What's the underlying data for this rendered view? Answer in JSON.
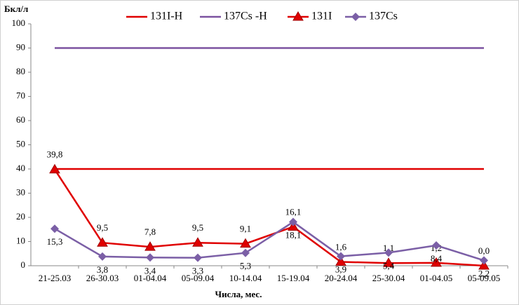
{
  "chart_data": {
    "type": "line",
    "y_axis_title": "Бкл/л",
    "x_axis_title": "Числа, мес.",
    "categories": [
      "21-25.03",
      "26-30.03",
      "01-04.04",
      "05-09.04",
      "10-14.04",
      "15-19.04",
      "20-24.04",
      "25-30.04",
      "01-04.05",
      "05-09.05"
    ],
    "ylim": [
      0,
      100
    ],
    "yticks": [
      0,
      10,
      20,
      30,
      40,
      50,
      60,
      70,
      80,
      90,
      100
    ],
    "grid": false,
    "legend": "top",
    "series": [
      {
        "name": "131I-Н",
        "color": "#e00000",
        "values": [
          40,
          40,
          40,
          40,
          40,
          40,
          40,
          40,
          40,
          40
        ]
      },
      {
        "name": "137Cs -Н",
        "color": "#7b52a0",
        "values": [
          90,
          90,
          90,
          90,
          90,
          90,
          90,
          90,
          90,
          90
        ]
      },
      {
        "name": "131I",
        "color": "#e00000",
        "marker": "triangle",
        "label_position": "above",
        "values": [
          39.8,
          9.5,
          7.8,
          9.5,
          9.1,
          16.1,
          1.6,
          1.1,
          1.2,
          0.0
        ],
        "value_labels": [
          "39,8",
          "9,5",
          "7,8",
          "9,5",
          "9,1",
          "16,1",
          "1,6",
          "1,1",
          "1,2",
          "0,0"
        ]
      },
      {
        "name": "137Cs",
        "color": "#7b5fa6",
        "marker": "diamond",
        "label_position": "below",
        "values": [
          15.3,
          3.8,
          3.4,
          3.3,
          5.3,
          18.1,
          3.9,
          5.4,
          8.4,
          2.2
        ],
        "value_labels": [
          "15,3",
          "3,8",
          "3,4",
          "3,3",
          "5,3",
          "18,1",
          "3,9",
          "5,4",
          "8,4",
          "2,2"
        ]
      }
    ]
  }
}
